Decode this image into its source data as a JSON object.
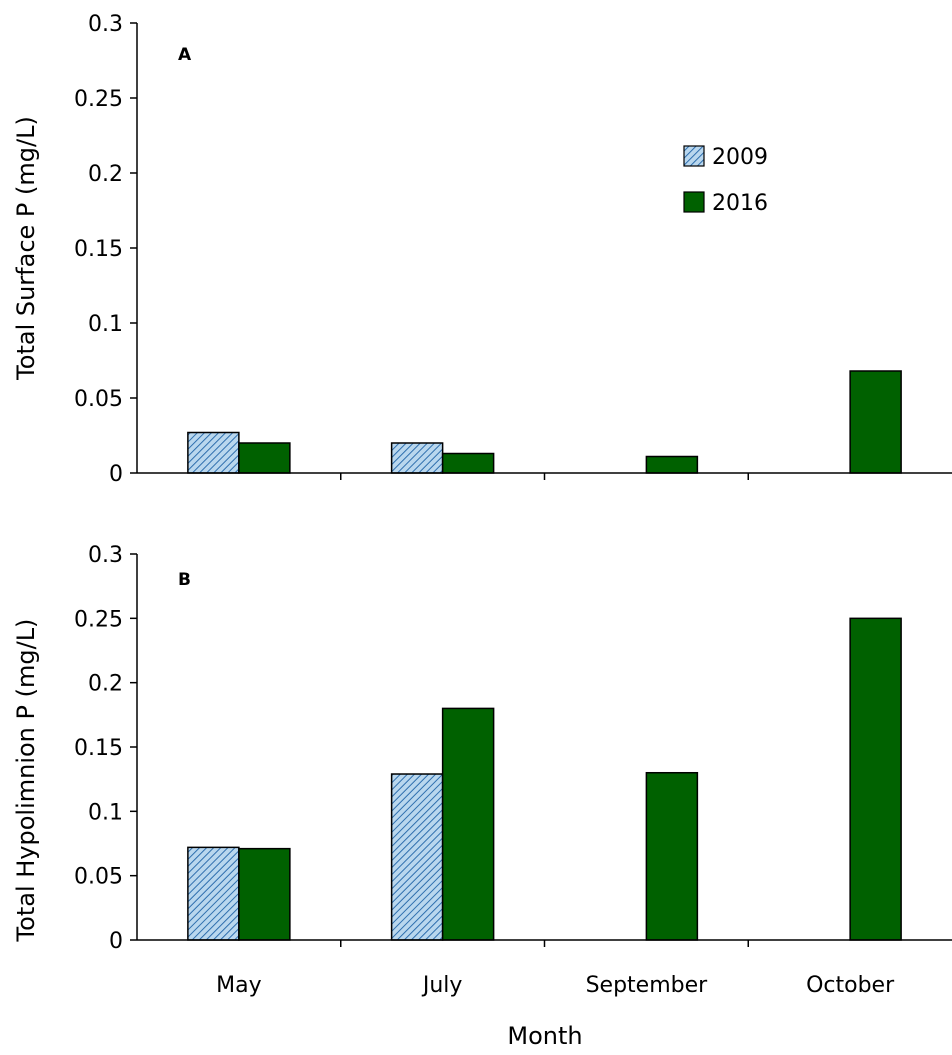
{
  "chart_data": [
    {
      "type": "bar",
      "panel_label": "A",
      "categories": [
        "May",
        "July",
        "September",
        "October"
      ],
      "series": [
        {
          "name": "2009",
          "values": [
            0.027,
            0.02,
            null,
            null
          ]
        },
        {
          "name": "2016",
          "values": [
            0.02,
            0.013,
            0.011,
            0.068
          ]
        }
      ],
      "ylabel": "Total Surface P (mg/L)",
      "xlabel": "",
      "ylim": [
        0,
        0.3
      ],
      "yticks": [
        "0",
        "0.05",
        "0.1",
        "0.15",
        "0.2",
        "0.25",
        "0.3"
      ],
      "legend": {
        "position": "top-right",
        "entries": [
          "2009",
          "2016"
        ]
      },
      "grid": false
    },
    {
      "type": "bar",
      "panel_label": "B",
      "categories": [
        "May",
        "July",
        "September",
        "October"
      ],
      "series": [
        {
          "name": "2009",
          "values": [
            0.072,
            0.129,
            null,
            null
          ]
        },
        {
          "name": "2016",
          "values": [
            0.071,
            0.18,
            0.13,
            0.25
          ]
        }
      ],
      "ylabel": "Total Hypolimnion P (mg/L)",
      "xlabel": "Month",
      "ylim": [
        0,
        0.3
      ],
      "yticks": [
        "0",
        "0.05",
        "0.1",
        "0.15",
        "0.2",
        "0.25",
        "0.3"
      ],
      "grid": false
    }
  ],
  "colors": {
    "series_2009_fill": "#b9d7ee",
    "series_2009_hatch": "#2f6fae",
    "series_2016_fill": "#006100",
    "outline": "#000000"
  }
}
